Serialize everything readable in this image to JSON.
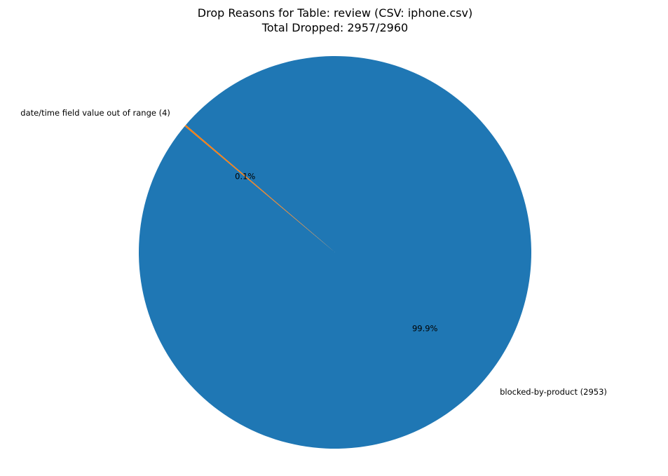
{
  "chart_data": {
    "type": "pie",
    "title": "Drop Reasons for Table: review (CSV: iphone.csv)",
    "subtitle": "Total Dropped: 2957/2960",
    "slices": [
      {
        "label": "blocked-by-product (2953)",
        "value": 2953,
        "percent_label": "99.9%",
        "color": "#1f77b4"
      },
      {
        "label": "date/time field value out of range (4)",
        "value": 4,
        "percent_label": "0.1%",
        "color": "#ff7f0e"
      }
    ],
    "start_angle_deg": 140,
    "legend": "none"
  }
}
